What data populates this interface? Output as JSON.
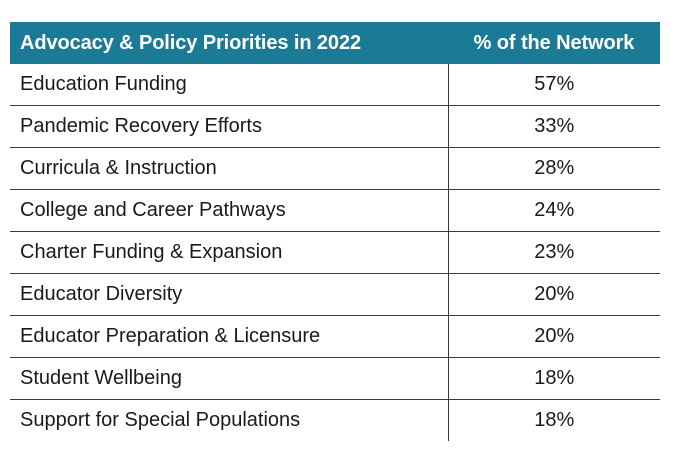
{
  "table": {
    "headers": [
      "Advocacy & Policy Priorities in 2022",
      "% of the Network"
    ],
    "rows": [
      [
        "Education Funding",
        "57%"
      ],
      [
        "Pandemic Recovery Efforts",
        "33%"
      ],
      [
        "Curricula & Instruction",
        "28%"
      ],
      [
        "College and Career Pathways",
        "24%"
      ],
      [
        "Charter Funding & Expansion",
        "23%"
      ],
      [
        "Educator Diversity",
        "20%"
      ],
      [
        "Educator Preparation & Licensure",
        "20%"
      ],
      [
        "Student Wellbeing",
        "18%"
      ],
      [
        "Support for Special Populations",
        "18%"
      ]
    ]
  },
  "colors": {
    "header_background": "#1b7a95",
    "header_text": "#ffffff",
    "body_text": "#1a1a1a",
    "rule": "#3a3a3a"
  }
}
